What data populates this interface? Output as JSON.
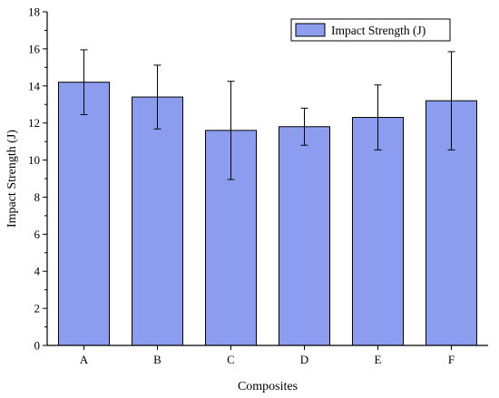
{
  "chart_data": {
    "type": "bar",
    "categories": [
      "A",
      "B",
      "C",
      "D",
      "E",
      "F"
    ],
    "series": [
      {
        "name": "Impact Strength (J)",
        "values": [
          14.2,
          13.4,
          11.6,
          11.8,
          12.3,
          13.2
        ],
        "error": [
          1.75,
          1.72,
          2.65,
          1.0,
          1.75,
          2.65
        ],
        "color": "#8c9df0"
      }
    ],
    "xlabel": "Composites",
    "ylabel": "Impact Strength (J)",
    "ylim": [
      0,
      18
    ],
    "yticks": [
      0,
      2,
      4,
      6,
      8,
      10,
      12,
      14,
      16,
      18
    ],
    "grid": false,
    "legend": "top-right"
  }
}
